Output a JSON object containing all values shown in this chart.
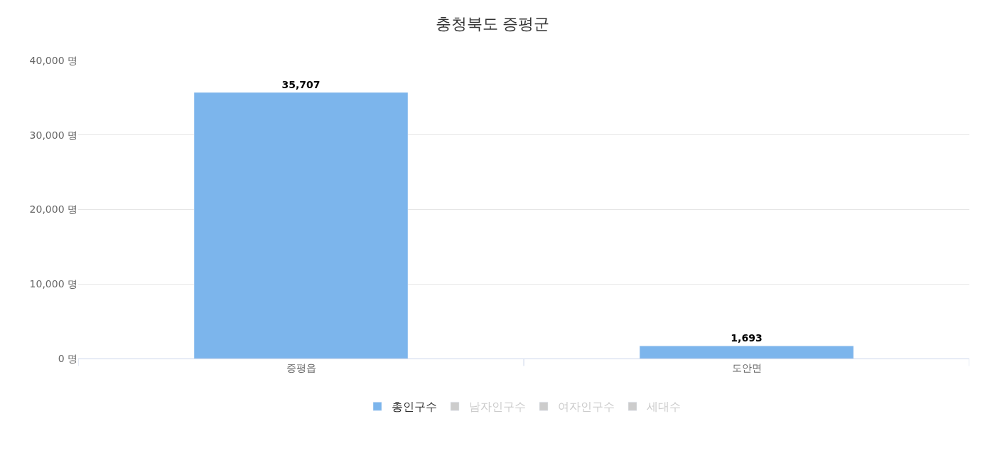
{
  "chart_data": {
    "type": "bar",
    "title": "충청북도 증평군",
    "categories": [
      "증평읍",
      "도안면"
    ],
    "series": [
      {
        "name": "총인구수",
        "color": "#7cb5ec",
        "values": [
          35707,
          1693
        ],
        "value_labels": [
          "35,707",
          "1,693"
        ]
      },
      {
        "name": "남자인구수",
        "color": "#cccccc",
        "values": [
          null,
          null
        ]
      },
      {
        "name": "여자인구수",
        "color": "#cccccc",
        "values": [
          null,
          null
        ]
      },
      {
        "name": "세대수",
        "color": "#cccccc",
        "values": [
          null,
          null
        ]
      }
    ],
    "ylim": [
      0,
      40000
    ],
    "yticks": [
      {
        "value": 0,
        "label": "0 명"
      },
      {
        "value": 10000,
        "label": "10,000 명"
      },
      {
        "value": 20000,
        "label": "20,000 명"
      },
      {
        "value": 30000,
        "label": "30,000 명"
      },
      {
        "value": 40000,
        "label": "40,000 명"
      }
    ],
    "grid": "y",
    "legend": "bottom"
  }
}
